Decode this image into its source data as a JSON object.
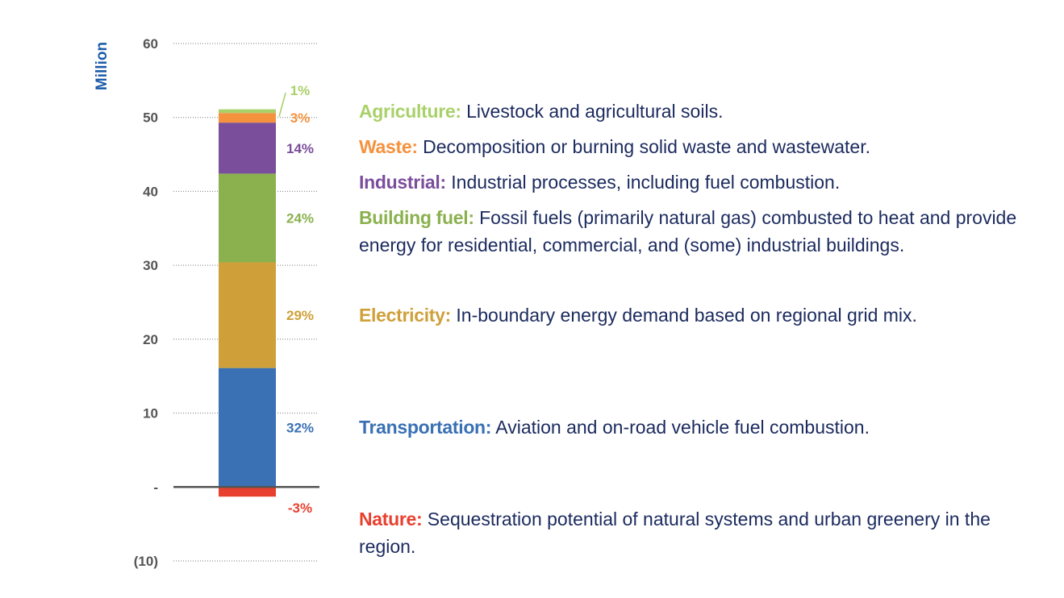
{
  "chart_data": {
    "type": "bar",
    "stacked": true,
    "ylabel": "Million",
    "ylim": [
      -10,
      60
    ],
    "ticks": [
      {
        "value": 60,
        "label": "60"
      },
      {
        "value": 50,
        "label": "50"
      },
      {
        "value": 40,
        "label": "40"
      },
      {
        "value": 30,
        "label": "30"
      },
      {
        "value": 20,
        "label": "20"
      },
      {
        "value": 10,
        "label": "10"
      },
      {
        "value": 0,
        "label": "-"
      },
      {
        "value": -10,
        "label": "(10)"
      }
    ],
    "grid": "dotted horizontal",
    "series": [
      {
        "name": "Nature",
        "value": -1.3,
        "percent_label": "-3%",
        "color": "#e8402f",
        "description": "Sequestration potential of natural systems and urban greenery in the region."
      },
      {
        "name": "Transportation",
        "value": 16.1,
        "percent_label": "32%",
        "color": "#3a71b5",
        "description": "Aviation and on-road vehicle fuel combustion."
      },
      {
        "name": "Electricity",
        "value": 14.3,
        "percent_label": "29%",
        "color": "#cfa03a",
        "description": "In-boundary energy demand based on regional grid mix."
      },
      {
        "name": "Building fuel",
        "value": 12.0,
        "percent_label": "24%",
        "color": "#8ab14e",
        "description": "Fossil fuels (primarily natural gas) combusted to heat and provide energy for residential, commercial, and (some) industrial buildings."
      },
      {
        "name": "Industrial",
        "value": 6.9,
        "percent_label": "14%",
        "color": "#7b4e9c",
        "description": "Industrial processes, including fuel combustion."
      },
      {
        "name": "Waste",
        "value": 1.3,
        "percent_label": "3%",
        "color": "#f5923e",
        "description": "Decomposition or burning solid waste and wastewater."
      },
      {
        "name": "Agriculture",
        "value": 0.5,
        "percent_label": "1%",
        "color": "#a9d16a",
        "description": "Livestock and agricultural soils."
      }
    ]
  },
  "colors": {
    "text": "#1b2a5e",
    "axis_label": "#1a5aa8",
    "tick": "#555555",
    "grid": "#777777",
    "zero_line": "#555555"
  }
}
